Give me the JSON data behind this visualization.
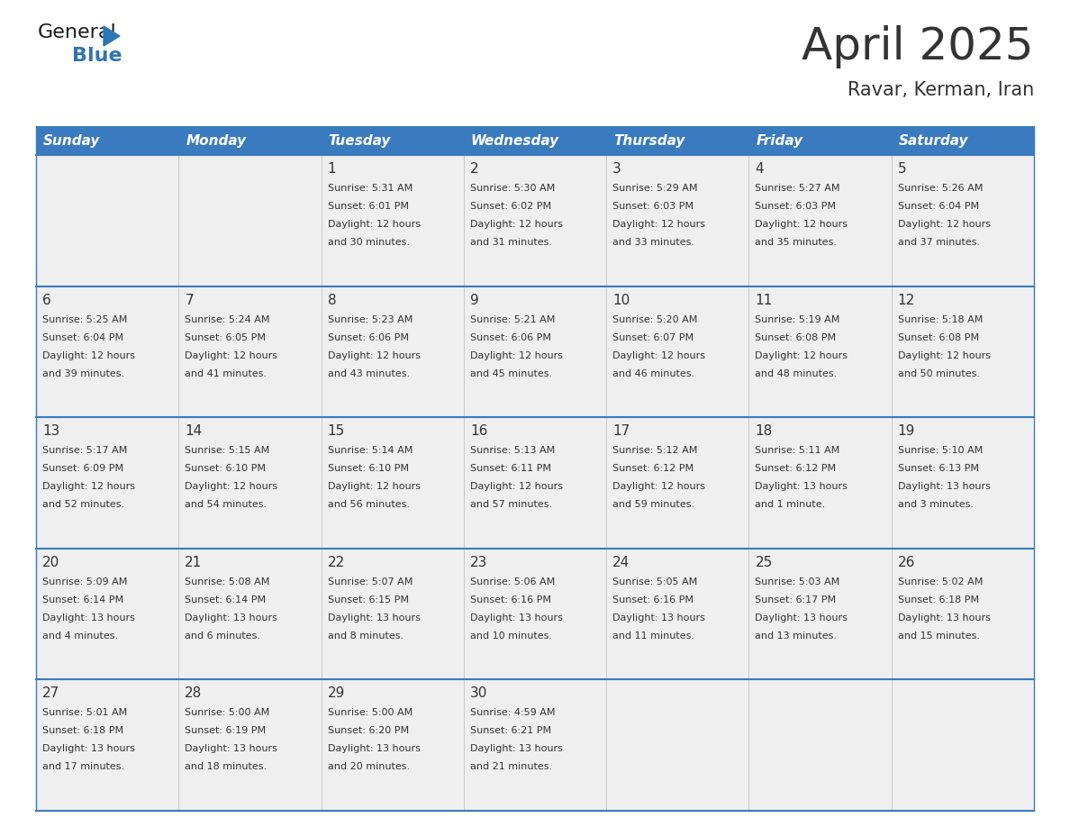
{
  "title": "April 2025",
  "subtitle": "Ravar, Kerman, Iran",
  "header_bg": "#3a7abf",
  "header_text_color": "#ffffff",
  "row_bg_light": "#efefef",
  "border_color": "#3a7abf",
  "cell_border_color": "#bbbbbb",
  "text_color": "#333333",
  "days_of_week": [
    "Sunday",
    "Monday",
    "Tuesday",
    "Wednesday",
    "Thursday",
    "Friday",
    "Saturday"
  ],
  "weeks": [
    [
      {
        "day": "",
        "sunrise": "",
        "sunset": "",
        "daylight": ""
      },
      {
        "day": "",
        "sunrise": "",
        "sunset": "",
        "daylight": ""
      },
      {
        "day": "1",
        "sunrise": "Sunrise: 5:31 AM",
        "sunset": "Sunset: 6:01 PM",
        "daylight": "Daylight: 12 hours\nand 30 minutes."
      },
      {
        "day": "2",
        "sunrise": "Sunrise: 5:30 AM",
        "sunset": "Sunset: 6:02 PM",
        "daylight": "Daylight: 12 hours\nand 31 minutes."
      },
      {
        "day": "3",
        "sunrise": "Sunrise: 5:29 AM",
        "sunset": "Sunset: 6:03 PM",
        "daylight": "Daylight: 12 hours\nand 33 minutes."
      },
      {
        "day": "4",
        "sunrise": "Sunrise: 5:27 AM",
        "sunset": "Sunset: 6:03 PM",
        "daylight": "Daylight: 12 hours\nand 35 minutes."
      },
      {
        "day": "5",
        "sunrise": "Sunrise: 5:26 AM",
        "sunset": "Sunset: 6:04 PM",
        "daylight": "Daylight: 12 hours\nand 37 minutes."
      }
    ],
    [
      {
        "day": "6",
        "sunrise": "Sunrise: 5:25 AM",
        "sunset": "Sunset: 6:04 PM",
        "daylight": "Daylight: 12 hours\nand 39 minutes."
      },
      {
        "day": "7",
        "sunrise": "Sunrise: 5:24 AM",
        "sunset": "Sunset: 6:05 PM",
        "daylight": "Daylight: 12 hours\nand 41 minutes."
      },
      {
        "day": "8",
        "sunrise": "Sunrise: 5:23 AM",
        "sunset": "Sunset: 6:06 PM",
        "daylight": "Daylight: 12 hours\nand 43 minutes."
      },
      {
        "day": "9",
        "sunrise": "Sunrise: 5:21 AM",
        "sunset": "Sunset: 6:06 PM",
        "daylight": "Daylight: 12 hours\nand 45 minutes."
      },
      {
        "day": "10",
        "sunrise": "Sunrise: 5:20 AM",
        "sunset": "Sunset: 6:07 PM",
        "daylight": "Daylight: 12 hours\nand 46 minutes."
      },
      {
        "day": "11",
        "sunrise": "Sunrise: 5:19 AM",
        "sunset": "Sunset: 6:08 PM",
        "daylight": "Daylight: 12 hours\nand 48 minutes."
      },
      {
        "day": "12",
        "sunrise": "Sunrise: 5:18 AM",
        "sunset": "Sunset: 6:08 PM",
        "daylight": "Daylight: 12 hours\nand 50 minutes."
      }
    ],
    [
      {
        "day": "13",
        "sunrise": "Sunrise: 5:17 AM",
        "sunset": "Sunset: 6:09 PM",
        "daylight": "Daylight: 12 hours\nand 52 minutes."
      },
      {
        "day": "14",
        "sunrise": "Sunrise: 5:15 AM",
        "sunset": "Sunset: 6:10 PM",
        "daylight": "Daylight: 12 hours\nand 54 minutes."
      },
      {
        "day": "15",
        "sunrise": "Sunrise: 5:14 AM",
        "sunset": "Sunset: 6:10 PM",
        "daylight": "Daylight: 12 hours\nand 56 minutes."
      },
      {
        "day": "16",
        "sunrise": "Sunrise: 5:13 AM",
        "sunset": "Sunset: 6:11 PM",
        "daylight": "Daylight: 12 hours\nand 57 minutes."
      },
      {
        "day": "17",
        "sunrise": "Sunrise: 5:12 AM",
        "sunset": "Sunset: 6:12 PM",
        "daylight": "Daylight: 12 hours\nand 59 minutes."
      },
      {
        "day": "18",
        "sunrise": "Sunrise: 5:11 AM",
        "sunset": "Sunset: 6:12 PM",
        "daylight": "Daylight: 13 hours\nand 1 minute."
      },
      {
        "day": "19",
        "sunrise": "Sunrise: 5:10 AM",
        "sunset": "Sunset: 6:13 PM",
        "daylight": "Daylight: 13 hours\nand 3 minutes."
      }
    ],
    [
      {
        "day": "20",
        "sunrise": "Sunrise: 5:09 AM",
        "sunset": "Sunset: 6:14 PM",
        "daylight": "Daylight: 13 hours\nand 4 minutes."
      },
      {
        "day": "21",
        "sunrise": "Sunrise: 5:08 AM",
        "sunset": "Sunset: 6:14 PM",
        "daylight": "Daylight: 13 hours\nand 6 minutes."
      },
      {
        "day": "22",
        "sunrise": "Sunrise: 5:07 AM",
        "sunset": "Sunset: 6:15 PM",
        "daylight": "Daylight: 13 hours\nand 8 minutes."
      },
      {
        "day": "23",
        "sunrise": "Sunrise: 5:06 AM",
        "sunset": "Sunset: 6:16 PM",
        "daylight": "Daylight: 13 hours\nand 10 minutes."
      },
      {
        "day": "24",
        "sunrise": "Sunrise: 5:05 AM",
        "sunset": "Sunset: 6:16 PM",
        "daylight": "Daylight: 13 hours\nand 11 minutes."
      },
      {
        "day": "25",
        "sunrise": "Sunrise: 5:03 AM",
        "sunset": "Sunset: 6:17 PM",
        "daylight": "Daylight: 13 hours\nand 13 minutes."
      },
      {
        "day": "26",
        "sunrise": "Sunrise: 5:02 AM",
        "sunset": "Sunset: 6:18 PM",
        "daylight": "Daylight: 13 hours\nand 15 minutes."
      }
    ],
    [
      {
        "day": "27",
        "sunrise": "Sunrise: 5:01 AM",
        "sunset": "Sunset: 6:18 PM",
        "daylight": "Daylight: 13 hours\nand 17 minutes."
      },
      {
        "day": "28",
        "sunrise": "Sunrise: 5:00 AM",
        "sunset": "Sunset: 6:19 PM",
        "daylight": "Daylight: 13 hours\nand 18 minutes."
      },
      {
        "day": "29",
        "sunrise": "Sunrise: 5:00 AM",
        "sunset": "Sunset: 6:20 PM",
        "daylight": "Daylight: 13 hours\nand 20 minutes."
      },
      {
        "day": "30",
        "sunrise": "Sunrise: 4:59 AM",
        "sunset": "Sunset: 6:21 PM",
        "daylight": "Daylight: 13 hours\nand 21 minutes."
      },
      {
        "day": "",
        "sunrise": "",
        "sunset": "",
        "daylight": ""
      },
      {
        "day": "",
        "sunrise": "",
        "sunset": "",
        "daylight": ""
      },
      {
        "day": "",
        "sunrise": "",
        "sunset": "",
        "daylight": ""
      }
    ]
  ],
  "logo_triangle_color": "#2e75b6"
}
